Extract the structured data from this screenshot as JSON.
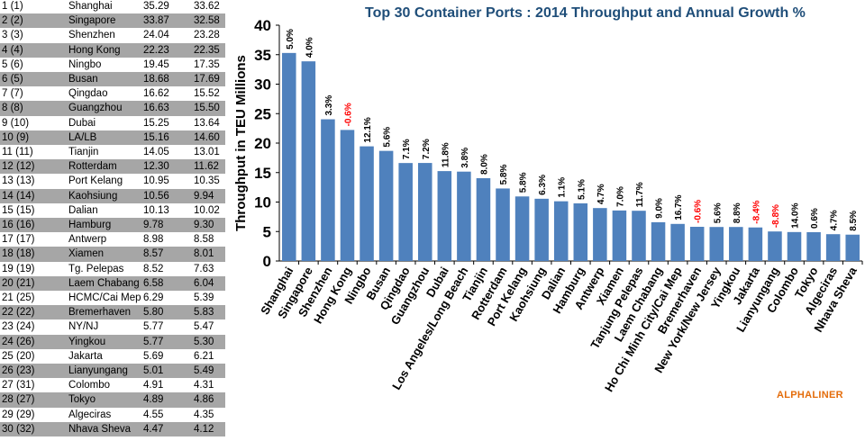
{
  "table": {
    "rows": [
      {
        "rank": "1 (1)",
        "port": "Shanghai",
        "v2014": "35.29",
        "v2013": "33.62"
      },
      {
        "rank": "2 (2)",
        "port": "Singapore",
        "v2014": "33.87",
        "v2013": "32.58"
      },
      {
        "rank": "3 (3)",
        "port": "Shenzhen",
        "v2014": "24.04",
        "v2013": "23.28"
      },
      {
        "rank": "4 (4)",
        "port": "Hong Kong",
        "v2014": "22.23",
        "v2013": "22.35"
      },
      {
        "rank": "5 (6)",
        "port": "Ningbo",
        "v2014": "19.45",
        "v2013": "17.35"
      },
      {
        "rank": "6 (5)",
        "port": "Busan",
        "v2014": "18.68",
        "v2013": "17.69"
      },
      {
        "rank": "7 (7)",
        "port": "Qingdao",
        "v2014": "16.62",
        "v2013": "15.52"
      },
      {
        "rank": "8 (8)",
        "port": "Guangzhou",
        "v2014": "16.63",
        "v2013": "15.50"
      },
      {
        "rank": "9 (10)",
        "port": "Dubai",
        "v2014": "15.25",
        "v2013": "13.64"
      },
      {
        "rank": "10 (9)",
        "port": "LA/LB",
        "v2014": "15.16",
        "v2013": "14.60"
      },
      {
        "rank": "11 (11)",
        "port": "Tianjin",
        "v2014": "14.05",
        "v2013": "13.01"
      },
      {
        "rank": "12 (12)",
        "port": "Rotterdam",
        "v2014": "12.30",
        "v2013": "11.62"
      },
      {
        "rank": "13 (13)",
        "port": "Port Kelang",
        "v2014": "10.95",
        "v2013": "10.35"
      },
      {
        "rank": "14 (14)",
        "port": "Kaohsiung",
        "v2014": "10.56",
        "v2013": "9.94"
      },
      {
        "rank": "15 (15)",
        "port": "Dalian",
        "v2014": "10.13",
        "v2013": "10.02"
      },
      {
        "rank": "16 (16)",
        "port": "Hamburg",
        "v2014": "9.78",
        "v2013": "9.30"
      },
      {
        "rank": "17 (17)",
        "port": "Antwerp",
        "v2014": "8.98",
        "v2013": "8.58"
      },
      {
        "rank": "18 (18)",
        "port": "Xiamen",
        "v2014": "8.57",
        "v2013": "8.01"
      },
      {
        "rank": "19 (19)",
        "port": "Tg. Pelepas",
        "v2014": "8.52",
        "v2013": "7.63"
      },
      {
        "rank": "20 (21)",
        "port": "Laem Chabang",
        "v2014": "6.58",
        "v2013": "6.04"
      },
      {
        "rank": "21 (25)",
        "port": "HCMC/Cai Mep",
        "v2014": "6.29",
        "v2013": "5.39"
      },
      {
        "rank": "22 (22)",
        "port": "Bremerhaven",
        "v2014": "5.80",
        "v2013": "5.83"
      },
      {
        "rank": "23 (24)",
        "port": "NY/NJ",
        "v2014": "5.77",
        "v2013": "5.47"
      },
      {
        "rank": "24 (26)",
        "port": "Yingkou",
        "v2014": "5.77",
        "v2013": "5.30"
      },
      {
        "rank": "25 (20)",
        "port": "Jakarta",
        "v2014": "5.69",
        "v2013": "6.21"
      },
      {
        "rank": "26 (23)",
        "port": "Lianyungang",
        "v2014": "5.01",
        "v2013": "5.49"
      },
      {
        "rank": "27 (31)",
        "port": "Colombo",
        "v2014": "4.91",
        "v2013": "4.31"
      },
      {
        "rank": "28 (27)",
        "port": "Tokyo",
        "v2014": "4.89",
        "v2013": "4.86"
      },
      {
        "rank": "29 (29)",
        "port": "Algeciras",
        "v2014": "4.55",
        "v2013": "4.35"
      },
      {
        "rank": "30 (32)",
        "port": "Nhava Sheva",
        "v2014": "4.47",
        "v2013": "4.12"
      }
    ]
  },
  "brand": "ALPHALINER",
  "chart_data": {
    "type": "bar",
    "title": "Top 30 Container Ports : 2014 Throughput and Annual Growth %",
    "ylabel": "Throughput in TEU Millions",
    "ylim": [
      0,
      40
    ],
    "yticks": [
      0,
      5,
      10,
      15,
      20,
      25,
      30,
      35,
      40
    ],
    "grid": false,
    "categories": [
      "Shanghai",
      "Singapore",
      "Shenzhen",
      "Hong Kong",
      "Ningbo",
      "Busan",
      "Qingdao",
      "Guangzhou",
      "Dubai",
      "Los Angeles/Long Beach",
      "Tianjin",
      "Rotterdam",
      "Port Kelang",
      "Kaohsiung",
      "Dalian",
      "Hamburg",
      "Antwerp",
      "Xiamen",
      "Tanjung Pelepas",
      "Laem Chabang",
      "Ho Chi Minh City/Cai Mep",
      "Bremerhaven",
      "New York/New Jersey",
      "Yingkou",
      "Jakarta",
      "Lianyungang",
      "Colombo",
      "Tokyo",
      "Algeciras",
      "Nhava Sheva"
    ],
    "values": [
      35.29,
      33.87,
      24.04,
      22.23,
      19.45,
      18.68,
      16.62,
      16.63,
      15.25,
      15.16,
      14.05,
      12.3,
      10.95,
      10.56,
      10.13,
      9.78,
      8.98,
      8.57,
      8.52,
      6.58,
      6.29,
      5.8,
      5.77,
      5.77,
      5.69,
      5.01,
      4.91,
      4.89,
      4.55,
      4.47
    ],
    "growth_labels": [
      "5.0%",
      "4.0%",
      "3.3%",
      "-0.6%",
      "12.1%",
      "5.6%",
      "7.1%",
      "7.2%",
      "11.8%",
      "3.8%",
      "8.0%",
      "5.8%",
      "5.8%",
      "6.3%",
      "1.1%",
      "5.1%",
      "4.7%",
      "7.0%",
      "11.7%",
      "9.0%",
      "16.7%",
      "-0.6%",
      "5.6%",
      "8.8%",
      "-8.4%",
      "-8.8%",
      "14.0%",
      "0.6%",
      "4.7%",
      "8.5%"
    ],
    "bar_color": "#4f81bd",
    "positive_label_color": "#000000",
    "negative_label_color": "#ff0000"
  }
}
